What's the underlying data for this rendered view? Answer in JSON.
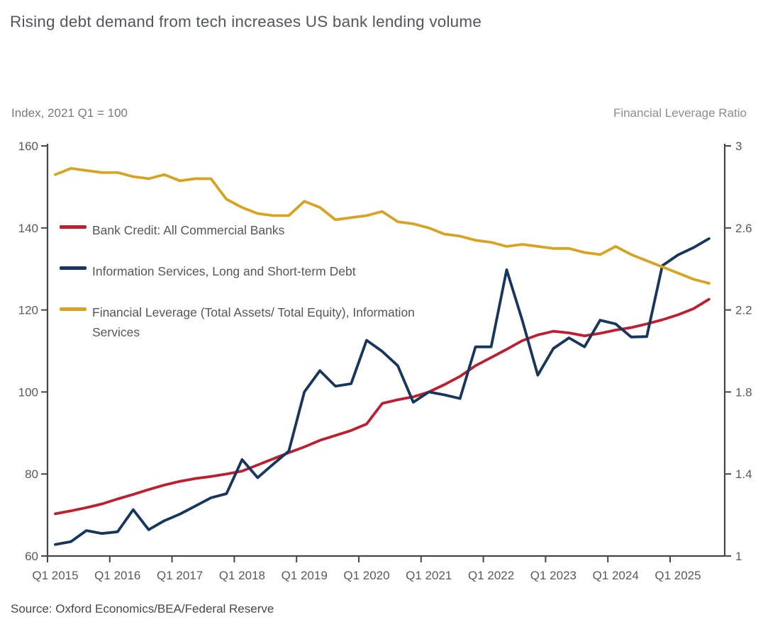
{
  "title": "Rising debt demand from tech increases US bank lending volume",
  "source": "Source: Oxford Economics/BEA/Federal Reserve",
  "colors": {
    "bank_credit": "#BF1E2E",
    "info_services_debt": "#17365D",
    "financial_leverage": "#D9A322",
    "axis": "#43474C",
    "tick_text": "#595959",
    "title_text": "#51575D"
  },
  "legend": {
    "items": [
      {
        "lines": [
          "Bank Credit: All Commercial Banks"
        ]
      },
      {
        "lines": [
          "Information Services, Long and Short-term Debt"
        ]
      },
      {
        "lines": [
          "Financial Leverage (Total Assets/ Total Equity), Information",
          "Services"
        ]
      }
    ]
  },
  "chart_data": {
    "type": "line",
    "title": "Rising debt demand from tech increases US bank lending volume",
    "grid": false,
    "legend_position": "inside-top-left",
    "left_axis": {
      "label": "Index, 2021 Q1 = 100",
      "range": [
        60,
        160
      ],
      "ticks": [
        "160",
        "140",
        "120",
        "100",
        "80",
        "60"
      ]
    },
    "right_axis": {
      "label": "Financial Leverage Ratio",
      "range": [
        1,
        3
      ],
      "ticks": [
        "3",
        "2.6",
        "2.2",
        "1.8",
        "1.4",
        "1"
      ]
    },
    "x_axis": {
      "tick_labels": [
        "Q1 2015",
        "Q1 2016",
        "Q1 2017",
        "Q1 2018",
        "Q1 2019",
        "Q1 2020",
        "Q1 2021",
        "Q1 2022",
        "Q1 2023",
        "Q1 2024",
        "Q1 2025"
      ],
      "start": "2015 Q1",
      "end": "2025 Q3",
      "frequency": "quarterly"
    },
    "series": [
      {
        "name": "Bank Credit: All Commercial Banks",
        "axis": "left",
        "color": "#BF1E2E",
        "values": [
          70.3,
          71.0,
          71.8,
          72.7,
          73.9,
          75.0,
          76.2,
          77.3,
          78.2,
          78.9,
          79.4,
          80.0,
          80.7,
          82.2,
          83.7,
          85.2,
          86.6,
          88.2,
          89.4,
          90.6,
          92.2,
          97.2,
          98.1,
          98.8,
          100.0,
          101.8,
          103.8,
          106.4,
          108.4,
          110.4,
          112.5,
          113.9,
          114.8,
          114.4,
          113.7,
          114.3,
          115.1,
          115.7,
          116.6,
          117.6,
          118.8,
          120.3,
          122.6
        ]
      },
      {
        "name": "Information Services, Long and Short-term Debt",
        "axis": "left",
        "color": "#17365D",
        "values": [
          62.8,
          63.5,
          66.2,
          65.5,
          65.9,
          71.3,
          66.4,
          68.6,
          70.2,
          72.2,
          74.2,
          75.2,
          83.5,
          79.1,
          82.4,
          85.6,
          100.0,
          105.2,
          101.4,
          102.0,
          112.6,
          109.9,
          106.4,
          97.5,
          100.0,
          99.3,
          98.4,
          111.0,
          111.0,
          129.8,
          117.5,
          104.1,
          110.6,
          113.2,
          111.0,
          117.5,
          116.6,
          113.4,
          113.5,
          130.8,
          133.4,
          135.2,
          137.4
        ]
      },
      {
        "name": "Financial Leverage (Total Assets/ Total Equity), Information Services",
        "axis": "right",
        "color": "#D9A322",
        "values": [
          2.86,
          2.89,
          2.88,
          2.87,
          2.87,
          2.85,
          2.84,
          2.86,
          2.83,
          2.84,
          2.84,
          2.74,
          2.7,
          2.67,
          2.66,
          2.66,
          2.73,
          2.7,
          2.64,
          2.65,
          2.66,
          2.68,
          2.63,
          2.62,
          2.6,
          2.57,
          2.56,
          2.54,
          2.53,
          2.51,
          2.52,
          2.51,
          2.5,
          2.5,
          2.48,
          2.47,
          2.51,
          2.47,
          2.44,
          2.41,
          2.38,
          2.35,
          2.33
        ]
      }
    ]
  }
}
